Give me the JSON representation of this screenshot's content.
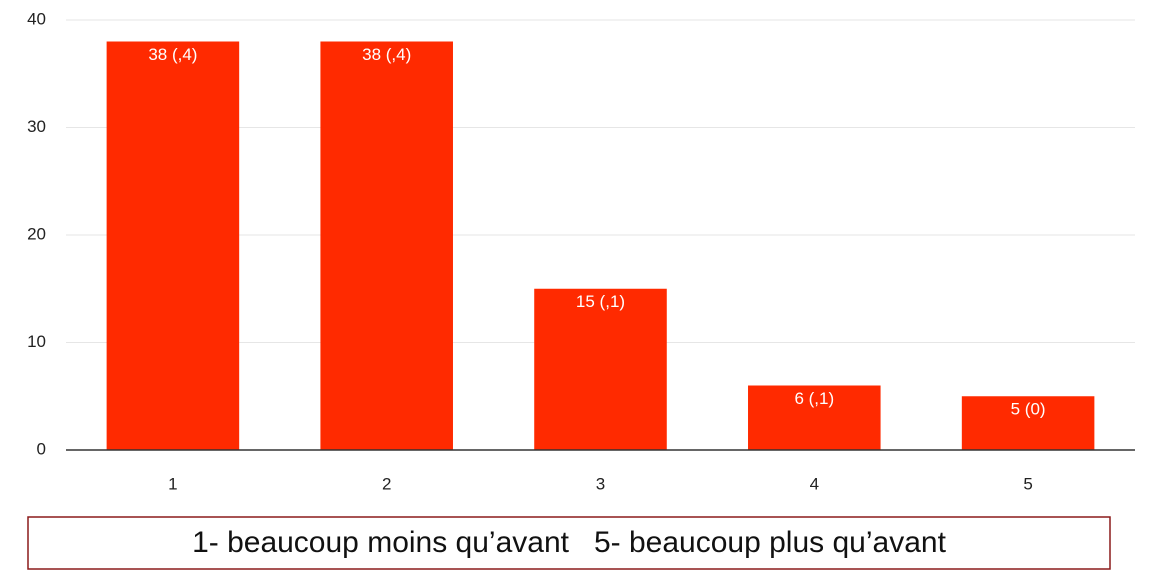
{
  "chart_data": {
    "type": "bar",
    "categories": [
      "1",
      "2",
      "3",
      "4",
      "5"
    ],
    "values": [
      38,
      38,
      15,
      6,
      5
    ],
    "value_labels": [
      "38 (,4)",
      "38 (,4)",
      "15 (,1)",
      "6 (,1)",
      "5 (0)"
    ],
    "color": "#ff2a00",
    "ylim": [
      0,
      40
    ],
    "yticks": [
      0,
      10,
      20,
      30,
      40
    ],
    "grid": true,
    "annotation": "1- beaucoup moins qu’avant   5- beaucoup plus qu’avant"
  }
}
